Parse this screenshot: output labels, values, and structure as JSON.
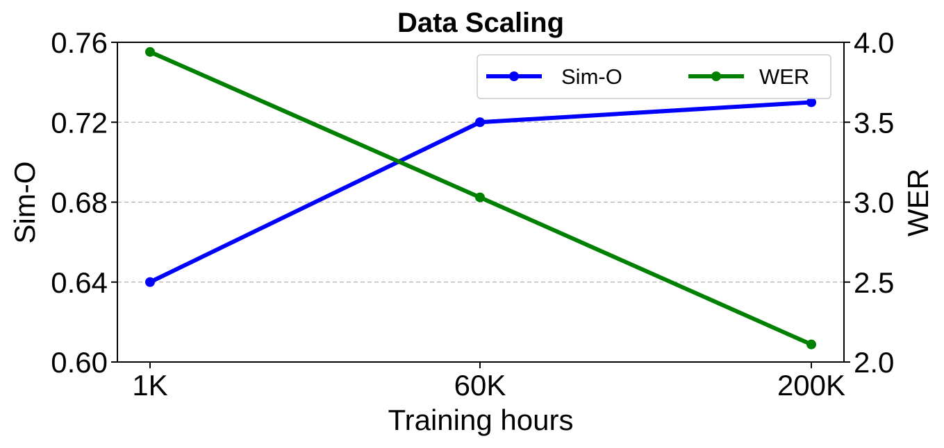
{
  "chart_data": {
    "type": "line",
    "title": "Data Scaling",
    "xlabel": "Training hours",
    "ylabel_left": "Sim-O",
    "ylabel_right": "WER",
    "categories": [
      "1K",
      "60K",
      "200K"
    ],
    "ylim_left": [
      0.6,
      0.76
    ],
    "ylim_right": [
      2.0,
      4.0
    ],
    "yticks_left": [
      "0.60",
      "0.64",
      "0.68",
      "0.72",
      "0.76"
    ],
    "yticks_right": [
      "2.0",
      "2.5",
      "3.0",
      "3.5",
      "4.0"
    ],
    "grid": "horizontal dashed",
    "legend_position": "top-right",
    "series": [
      {
        "name": "Sim-O",
        "axis": "left",
        "color": "#0000ff",
        "values": [
          0.64,
          0.72,
          0.73
        ]
      },
      {
        "name": "WER",
        "axis": "right",
        "color": "#008000",
        "values": [
          3.94,
          3.03,
          2.11
        ]
      }
    ]
  }
}
